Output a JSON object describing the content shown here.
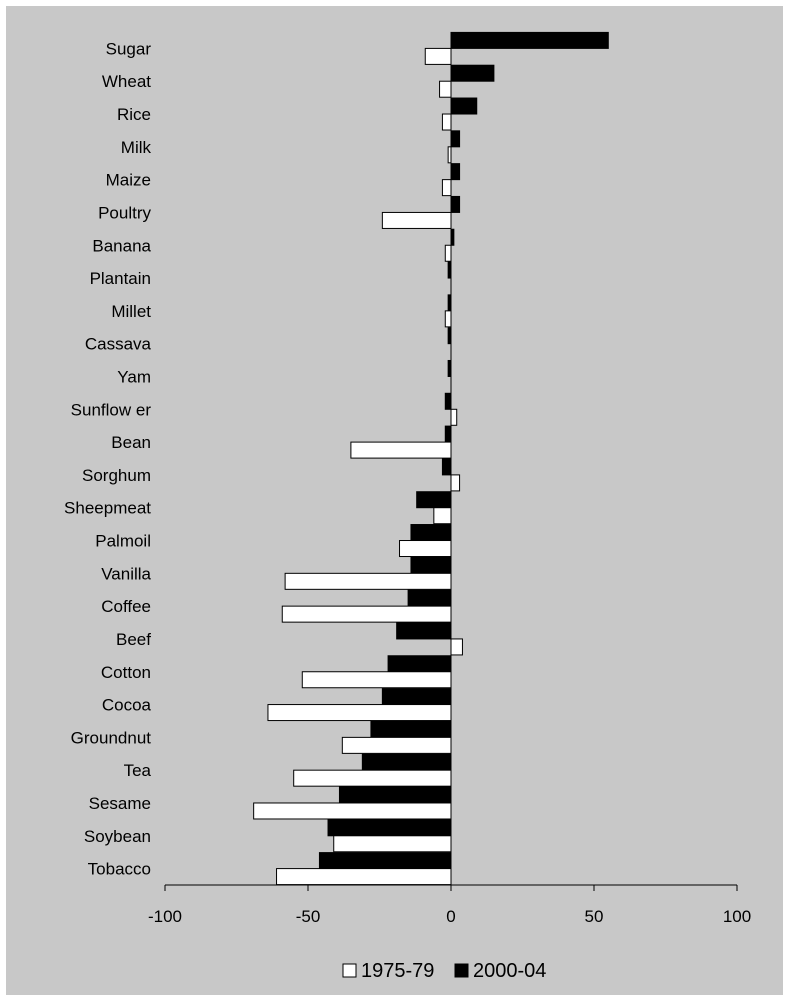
{
  "chart_data": {
    "type": "bar",
    "orientation": "horizontal",
    "categories": [
      "Sugar",
      "Wheat",
      "Rice",
      "Milk",
      "Maize",
      "Poultry",
      "Banana",
      "Plantain",
      "Millet",
      "Cassava",
      "Yam",
      "Sunflow er",
      "Bean",
      "Sorghum",
      "Sheepmeat",
      "Palmoil",
      "Vanilla",
      "Coffee",
      "Beef",
      "Cotton",
      "Cocoa",
      "Groundnut",
      "Tea",
      "Sesame",
      "Soybean",
      "Tobacco"
    ],
    "series": [
      {
        "name": "1975-79",
        "color": "#ffffff",
        "values": [
          -9,
          -4,
          -3,
          -1,
          -3,
          -24,
          -2,
          0,
          -2,
          0,
          0,
          2,
          -35,
          3,
          -6,
          -18,
          -58,
          -59,
          4,
          -52,
          -64,
          -38,
          -55,
          -69,
          -41,
          -61
        ]
      },
      {
        "name": "2000-04",
        "color": "#000000",
        "values": [
          55,
          15,
          9,
          3,
          3,
          3,
          1,
          -1,
          -1,
          -1,
          -1,
          -2,
          -2,
          -3,
          -12,
          -14,
          -14,
          -15,
          -19,
          -22,
          -24,
          -28,
          -31,
          -39,
          -43,
          -46
        ]
      }
    ],
    "xlim": [
      -100,
      100
    ],
    "xticks": [
      "-100",
      "-50",
      "0",
      "50",
      "100"
    ],
    "legend": {
      "position": "bottom",
      "entries": [
        "1975-79",
        "2000-04"
      ]
    },
    "grid": false,
    "background": "#c8c8c8"
  }
}
